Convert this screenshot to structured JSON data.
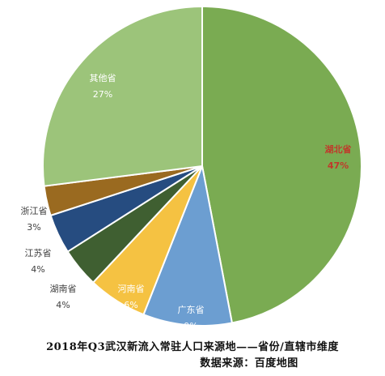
{
  "chart_data": {
    "type": "pie",
    "title": "2018年Q3武汉新流入常驻人口来源地——省份/直辖市维度",
    "source": "数据来源：百度地图",
    "slices": [
      {
        "label": "湖北省",
        "value": 47,
        "value_label": "47%",
        "color": "#7aab52",
        "label_color": "#c0392b"
      },
      {
        "label": "广东省",
        "value": 9,
        "value_label": "9%",
        "color": "#6c9ed1",
        "label_color": "#ffffff"
      },
      {
        "label": "河南省",
        "value": 6,
        "value_label": "6%",
        "color": "#f5c242",
        "label_color": "#ffffff"
      },
      {
        "label": "湖南省",
        "value": 4,
        "value_label": "4%",
        "color": "#3f5f31",
        "label_color": "#404040"
      },
      {
        "label": "江苏省",
        "value": 4,
        "value_label": "4%",
        "color": "#264c80",
        "label_color": "#404040"
      },
      {
        "label": "浙江省",
        "value": 3,
        "value_label": "3%",
        "color": "#9a6a20",
        "label_color": "#404040"
      },
      {
        "label": "其他省",
        "value": 27,
        "value_label": "27%",
        "color": "#9cc47a",
        "label_color": "#ffffff"
      }
    ],
    "start_angle": "12 o'clock",
    "direction": "clockwise",
    "legend": "none"
  }
}
